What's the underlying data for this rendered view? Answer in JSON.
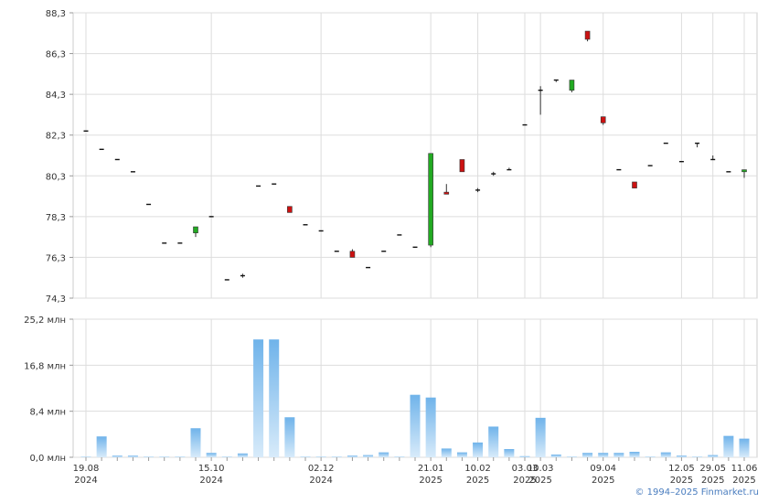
{
  "chart_data": [
    {
      "type": "candlestick",
      "x": [
        "19.08.2024",
        "26.08.2024",
        "02.09.2024",
        "09.09.2024",
        "16.09.2024",
        "23.09.2024",
        "30.09.2024",
        "07.10.2024",
        "14.10.2024",
        "21.10.2024",
        "28.10.2024",
        "04.11.2024",
        "11.11.2024",
        "18.11.2024",
        "25.11.2024",
        "02.12.2024",
        "09.12.2024",
        "16.12.2024",
        "23.12.2024",
        "30.12.2024",
        "06.01.2025",
        "13.01.2025",
        "20.01.2025",
        "27.01.2025",
        "03.02.2025",
        "10.02.2025",
        "17.02.2025",
        "24.02.2025",
        "03.03.2025",
        "10.03.2025",
        "17.03.2025",
        "24.03.2025",
        "31.03.2025",
        "07.04.2025",
        "14.04.2025",
        "21.04.2025",
        "28.04.2025",
        "05.05.2025",
        "12.05.2025",
        "19.05.2025",
        "26.05.2025",
        "02.06.2025",
        "09.06.2025"
      ],
      "open": [
        82.5,
        81.6,
        81.1,
        80.5,
        78.9,
        77.0,
        77.0,
        77.5,
        78.3,
        75.2,
        75.4,
        79.8,
        79.9,
        78.8,
        77.9,
        77.6,
        76.6,
        76.6,
        75.8,
        76.6,
        77.4,
        76.8,
        76.9,
        79.5,
        81.1,
        79.6,
        80.4,
        80.6,
        82.8,
        84.5,
        85.0,
        84.5,
        87.4,
        83.2,
        80.6,
        80.0,
        80.8,
        81.9,
        81.0,
        81.9,
        81.1,
        80.5,
        80.5
      ],
      "high": [
        82.5,
        81.6,
        81.1,
        80.5,
        78.9,
        77.0,
        77.0,
        77.8,
        78.3,
        75.2,
        75.5,
        79.8,
        79.9,
        78.8,
        77.9,
        77.6,
        76.6,
        76.7,
        75.8,
        76.6,
        77.4,
        76.8,
        81.4,
        79.9,
        81.1,
        79.7,
        80.5,
        80.7,
        82.8,
        84.7,
        85.0,
        85.0,
        87.4,
        83.2,
        80.6,
        80.0,
        80.8,
        81.9,
        81.0,
        81.9,
        81.3,
        80.5,
        80.6
      ],
      "low": [
        82.5,
        81.6,
        81.1,
        80.5,
        78.9,
        77.0,
        77.0,
        77.3,
        78.3,
        75.2,
        75.3,
        79.8,
        79.9,
        78.5,
        77.9,
        77.6,
        76.6,
        76.3,
        75.8,
        76.6,
        77.4,
        76.8,
        76.8,
        79.4,
        80.5,
        79.5,
        80.3,
        80.6,
        82.8,
        83.3,
        84.9,
        84.4,
        86.9,
        82.8,
        80.6,
        79.7,
        80.8,
        81.9,
        81.0,
        81.7,
        81.1,
        80.5,
        80.2
      ],
      "close": [
        82.5,
        81.6,
        81.1,
        80.5,
        78.9,
        77.0,
        77.0,
        77.8,
        78.3,
        75.2,
        75.4,
        79.8,
        79.9,
        78.5,
        77.9,
        77.6,
        76.6,
        76.3,
        75.8,
        76.6,
        77.4,
        76.8,
        81.4,
        79.4,
        80.5,
        79.6,
        80.4,
        80.6,
        82.8,
        84.5,
        85.0,
        85.0,
        87.0,
        82.9,
        80.6,
        79.7,
        80.8,
        81.9,
        81.0,
        81.9,
        81.1,
        80.5,
        80.6
      ],
      "ylim": [
        74.3,
        88.3
      ],
      "y_ticks": [
        "74,3",
        "76,3",
        "78,3",
        "80,3",
        "82,3",
        "84,3",
        "86,3",
        "88,3"
      ],
      "colors": {
        "up": "#22aa22",
        "down": "#cc1111",
        "flat": "#111111"
      }
    },
    {
      "type": "bar",
      "x": [
        "19.08.2024",
        "26.08.2024",
        "02.09.2024",
        "09.09.2024",
        "16.09.2024",
        "23.09.2024",
        "30.09.2024",
        "07.10.2024",
        "14.10.2024",
        "21.10.2024",
        "28.10.2024",
        "04.11.2024",
        "11.11.2024",
        "18.11.2024",
        "25.11.2024",
        "02.12.2024",
        "09.12.2024",
        "16.12.2024",
        "23.12.2024",
        "30.12.2024",
        "06.01.2025",
        "13.01.2025",
        "20.01.2025",
        "27.01.2025",
        "03.02.2025",
        "10.02.2025",
        "17.02.2025",
        "24.02.2025",
        "03.03.2025",
        "10.03.2025",
        "17.03.2025",
        "24.03.2025",
        "31.03.2025",
        "07.04.2025",
        "14.04.2025",
        "21.04.2025",
        "28.04.2025",
        "05.05.2025",
        "12.05.2025",
        "19.05.2025",
        "26.05.2025",
        "02.06.2025",
        "09.06.2025"
      ],
      "values": [
        0.1,
        3.8,
        0.3,
        0.3,
        0.1,
        0.1,
        0.1,
        5.3,
        0.8,
        0.1,
        0.7,
        21.5,
        21.5,
        7.3,
        0.1,
        0.1,
        0.1,
        0.3,
        0.4,
        0.9,
        0.1,
        11.4,
        10.9,
        1.6,
        0.9,
        2.7,
        5.6,
        1.5,
        0.2,
        7.2,
        0.5,
        0.1,
        0.8,
        0.8,
        0.8,
        1.0,
        0.1,
        0.9,
        0.3,
        0.1,
        0.4,
        3.9,
        3.4
      ],
      "ylim": [
        0,
        25.2
      ],
      "y_ticks": [
        "0,0 млн",
        "8,4 млн",
        "16,8 млн",
        "25,2 млн"
      ],
      "colors": {
        "bar_top": "#6fb3ea",
        "bar_bottom": "#d8ebfa"
      }
    }
  ],
  "x_axis_labels": [
    {
      "day": "19.08",
      "year": "2024",
      "at": "19.08.2024"
    },
    {
      "day": "15.10",
      "year": "2024",
      "at": "14.10.2024"
    },
    {
      "day": "02.12",
      "year": "2024",
      "at": "02.12.2024"
    },
    {
      "day": "21.01",
      "year": "2025",
      "at": "20.01.2025"
    },
    {
      "day": "10.02",
      "year": "2025",
      "at": "10.02.2025"
    },
    {
      "day": "03.03",
      "year": "2025",
      "at": "03.03.2025"
    },
    {
      "day": "10.03",
      "year": "2025",
      "at": "10.03.2025"
    },
    {
      "day": "09.04",
      "year": "2025",
      "at": "07.04.2025"
    },
    {
      "day": "12.05",
      "year": "2025",
      "at": "12.05.2025"
    },
    {
      "day": "29.05",
      "year": "2025",
      "at": "26.05.2025"
    },
    {
      "day": "11.06",
      "year": "2025",
      "at": "09.06.2025"
    }
  ],
  "credit": "© 1994–2025 Finmarket.ru"
}
